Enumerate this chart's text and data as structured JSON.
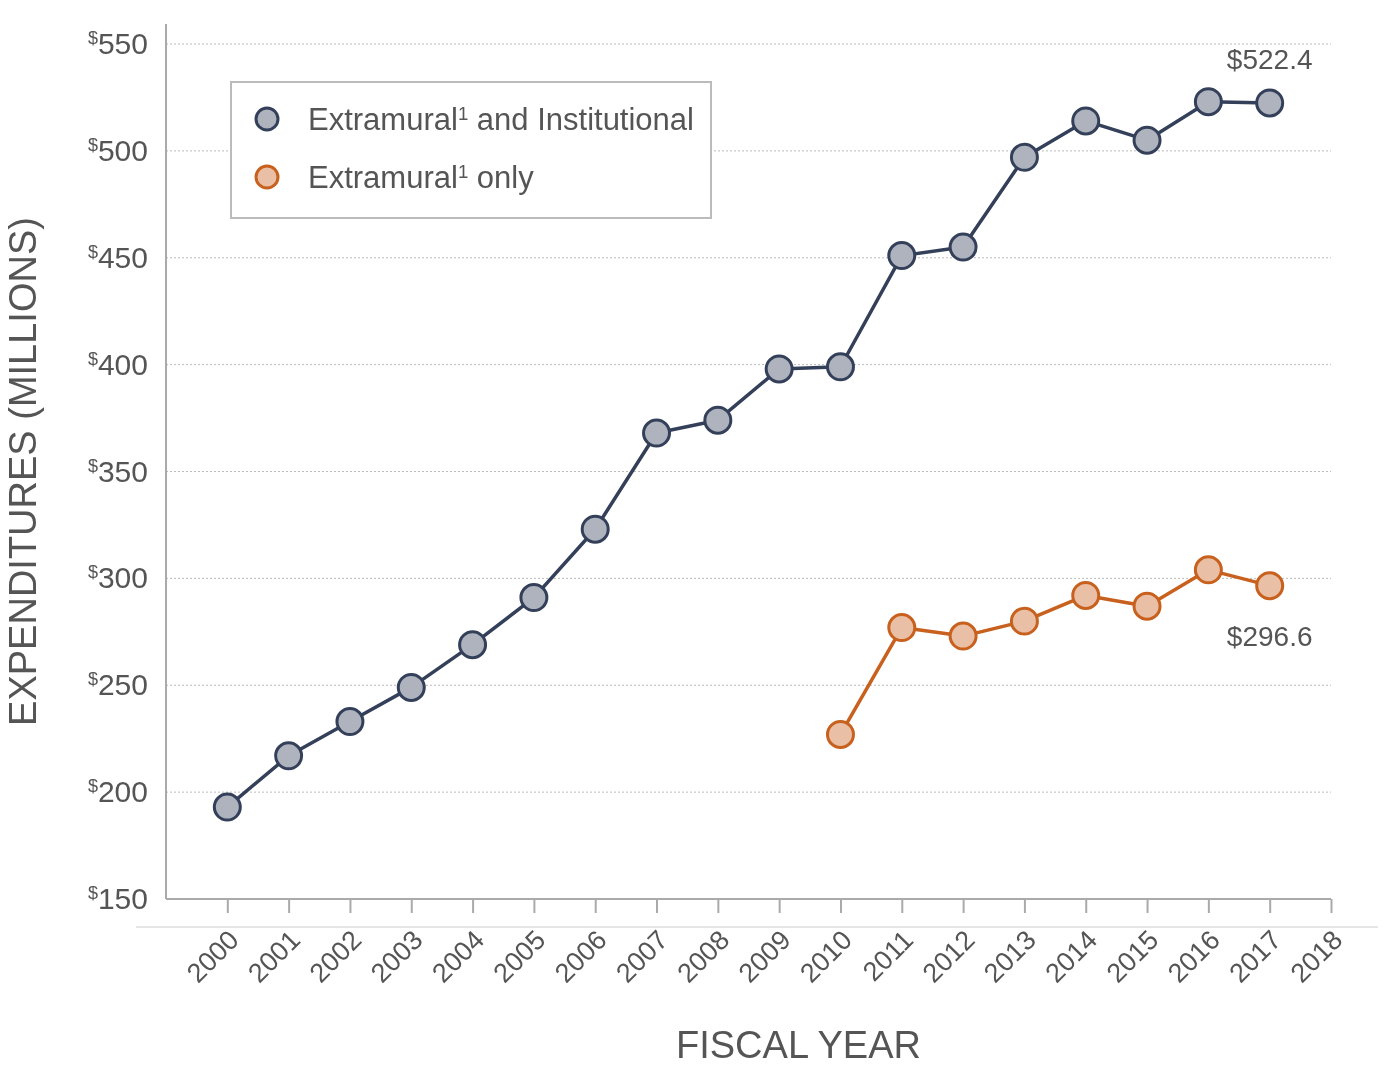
{
  "chart_data": {
    "type": "line",
    "xlabel": "FISCAL YEAR",
    "ylabel": "EXPENDITURES (MILLIONS)",
    "x": [
      2000,
      2001,
      2002,
      2003,
      2004,
      2005,
      2006,
      2007,
      2008,
      2009,
      2010,
      2011,
      2012,
      2013,
      2014,
      2015,
      2016,
      2017
    ],
    "series": [
      {
        "name": "Extramural$^{1}$ and Institutional",
        "color": "#34405a",
        "values": [
          193,
          217,
          233,
          249,
          269,
          291,
          323,
          368,
          374,
          398,
          399,
          451,
          455,
          497,
          514,
          505,
          523,
          522.4
        ],
        "value_labels": [
          null,
          null,
          null,
          null,
          null,
          null,
          null,
          null,
          null,
          null,
          null,
          null,
          null,
          null,
          null,
          null,
          null,
          "$522.4"
        ]
      },
      {
        "name": "Extramural$^{1}$ only",
        "color": "#c8601e",
        "values": [
          null,
          null,
          null,
          null,
          null,
          null,
          null,
          null,
          null,
          null,
          227,
          277,
          273,
          280,
          292,
          287,
          304,
          296.6
        ],
        "value_labels": [
          null,
          null,
          null,
          null,
          null,
          null,
          null,
          null,
          null,
          null,
          null,
          null,
          null,
          null,
          null,
          null,
          null,
          "$296.6"
        ]
      }
    ],
    "xlim": [
      1999,
      2018
    ],
    "xticks": [
      2000,
      2001,
      2002,
      2003,
      2004,
      2005,
      2006,
      2007,
      2008,
      2009,
      2010,
      2011,
      2012,
      2013,
      2014,
      2015,
      2016,
      2017,
      2018
    ],
    "ylim": [
      150,
      550
    ],
    "yticks": [
      {
        "value": 150,
        "label": "$^{$}$150"
      },
      {
        "value": 200,
        "label": "$^{$}$200"
      },
      {
        "value": 250,
        "label": "$^{$}$250"
      },
      {
        "value": 300,
        "label": "$^{$}$300"
      },
      {
        "value": 350,
        "label": "$^{$}$350"
      },
      {
        "value": 400,
        "label": "$^{$}$400"
      },
      {
        "value": 450,
        "label": "$^{$}$450"
      },
      {
        "value": 500,
        "label": "$^{$}$500"
      },
      {
        "value": 550,
        "label": "$^{$}$550"
      }
    ],
    "grid": "y",
    "legend": "top left",
    "marker": "circle",
    "line_style": "solid"
  }
}
